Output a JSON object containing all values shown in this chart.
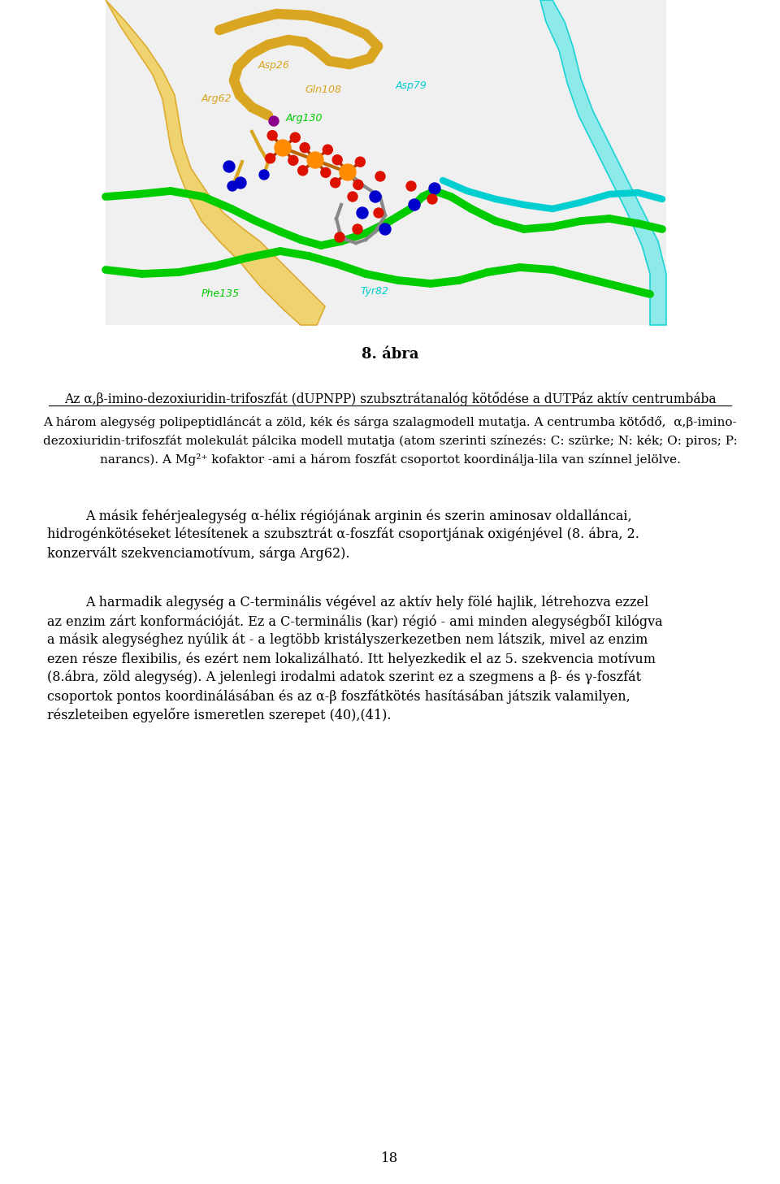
{
  "figure_title": "8. ábra",
  "caption_title_underlined": "Az α,β-imino-dezoxiuridin-trifoszfát (dUPNPP) szubsztrátanalóg kötődése a dUTPáz aktív centrumbába",
  "caption_body": [
    "A három alegység polipeptidláncát a zöld, kék és sárga szalagmodell mutatja. A centrumba kötődő,  α,β-imino-",
    "dezoxiuridin-trifoszfát molekulát pálcika modell mutatja (atom szerinti színezés: C: szürke; N: kék; O: piros; P:",
    "narancs). A Mg²⁺ kofaktor -ami a három foszfát csoportot koordinálja-lila van színnel jelölve."
  ],
  "para1": [
    "A másik fehérjealegység α-hélix régiójának arginin és szerin aminosav oldalláncai,",
    "hidrogénkötéseket létesítenek a szubsztrát α-foszfát csoportjának oxigénjével (8. ábra, 2.",
    "konzervált szekvenciamotívum, sárga Arg62)."
  ],
  "para2": [
    "A harmadik alegység a C-terminális végével az aktív hely fölé hajlik, létrehozva ezzel",
    "az enzim zárt konformációját. Ez a C-terminális (kar) régió - ami minden alegységbőI kilógva",
    "a másik alegységhez nyúlik át - a legtöbb kristályszerkezetben nem látszik, mivel az enzim",
    "ezen része flexibilis, és ezért nem lokalizálható. Itt helyezkedik el az 5. szekvencia motívum",
    "(8.ábra, zöld alegység). A jelenlegi irodalmi adatok szerint ez a szegmens a β- és γ-foszfát",
    "csoportok pontos koordinálásában és az α-β foszfátkötés hasításában játszik valamilyen,",
    "részleteiben egyelőre ismeretlen szerepet (40),(41)."
  ],
  "page_number": "18",
  "bg_color": "#ffffff",
  "text_color": "#000000",
  "figsize": [
    9.6,
    14.57
  ],
  "dpi": 100,
  "yellow": "#DAA520",
  "yellow_light": "#F0D060",
  "cyan_color": "#00CED1",
  "cyan_light": "#7DE8E8",
  "green_color": "#00CC00",
  "orange_p": "#FF8C00",
  "red_o": "#DD1100",
  "gray_c": "#888888",
  "blue_n": "#0000CC",
  "purple_mg": "#8B008B"
}
